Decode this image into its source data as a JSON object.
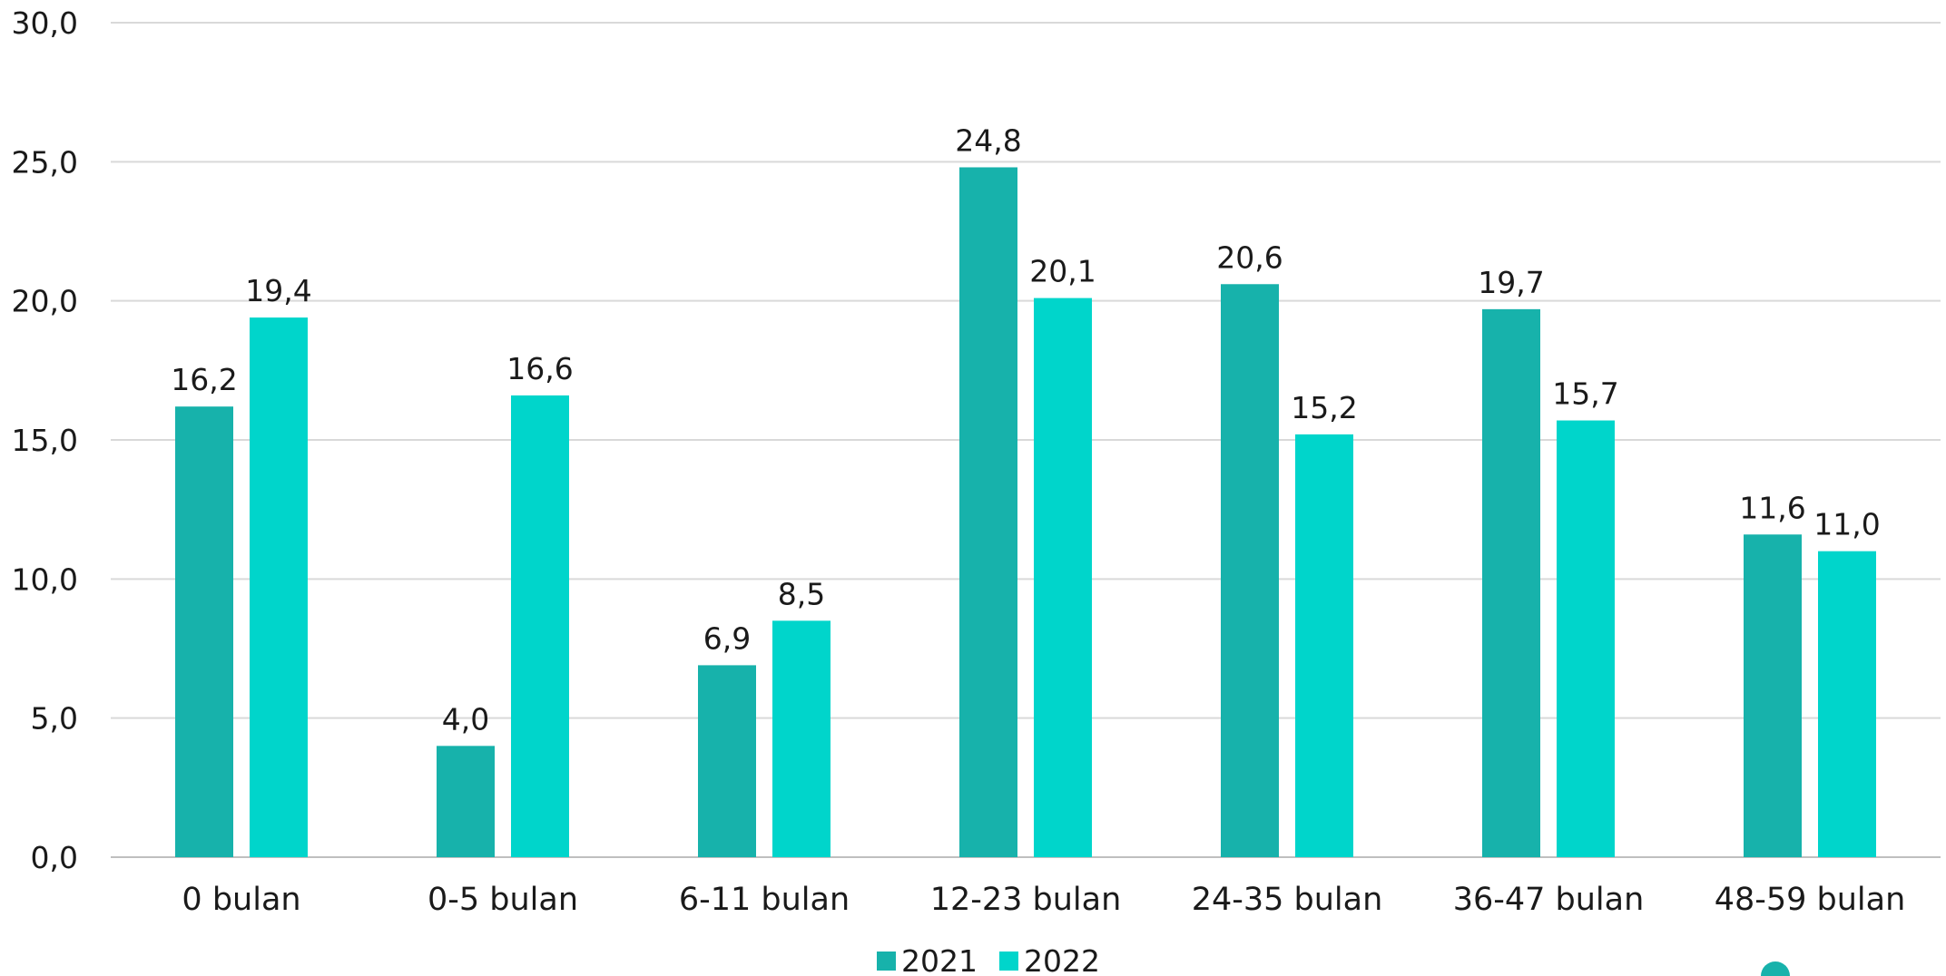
{
  "chart_data": {
    "type": "bar",
    "title": "",
    "xlabel": "",
    "ylabel": "",
    "categories": [
      "0 bulan",
      "0-5 bulan",
      "6-11 bulan",
      "12-23 bulan",
      "24-35 bulan",
      "36-47 bulan",
      "48-59 bulan"
    ],
    "series": [
      {
        "name": "2021",
        "values": [
          16.2,
          4.0,
          6.9,
          24.8,
          20.6,
          19.7,
          11.6
        ],
        "labels": [
          "16,2",
          "4,0",
          "6,9",
          "24,8",
          "20,6",
          "19,7",
          "11,6"
        ],
        "color": "#17b2ab"
      },
      {
        "name": "2022",
        "values": [
          19.4,
          16.6,
          8.5,
          20.1,
          15.2,
          15.7,
          11.0
        ],
        "labels": [
          "19,4",
          "16,6",
          "8,5",
          "20,1",
          "15,2",
          "15,7",
          "11,0"
        ],
        "color": "#00d5cb"
      }
    ],
    "ylim": [
      0,
      30
    ],
    "yticks": [
      "0,0",
      "5,0",
      "10,0",
      "15,0",
      "20,0",
      "25,0",
      "30,0"
    ],
    "grid": true,
    "legend_position": "bottom-center"
  },
  "colors": {
    "gridline": "#d9d9d9",
    "decoration": "#17b2ab"
  }
}
